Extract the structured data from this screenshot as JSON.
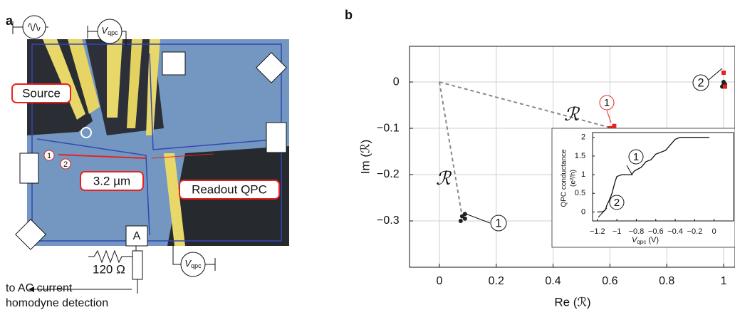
{
  "panel_a": {
    "label": "a",
    "source": "Source",
    "distance": "3.2 µm",
    "readout": "Readout QPC",
    "ammeter": "A",
    "resistor": "120 Ω",
    "detection": [
      "to AC current",
      "homodyne detection"
    ],
    "vqpc_symbol": "V",
    "vqpc_subscript": "qpc",
    "markers": [
      "1",
      "2"
    ]
  },
  "chart_data": [
    {
      "type": "scatter",
      "label": "b",
      "xlabel": "Re (ℛ)",
      "ylabel": "Im (ℛ)",
      "xlim": [
        -0.105,
        1.04
      ],
      "ylim": [
        -0.4,
        0.077
      ],
      "xticks": [
        0,
        0.2,
        0.4,
        0.6,
        0.8,
        1
      ],
      "yticks": [
        0,
        {
          "value": -0.1,
          "label": "−0.1"
        },
        {
          "value": -0.2,
          "label": "−0.2"
        },
        {
          "value": -0.3,
          "label": "−0.3"
        }
      ],
      "grid": true,
      "series": [
        {
          "color": "#222222",
          "x": [
            0.08,
            0.09,
            0.075,
            0.09,
            1.0,
            1.0,
            0.995,
            1.005
          ],
          "y": [
            -0.29,
            -0.285,
            -0.3,
            -0.295,
            -0.005,
            0.0,
            -0.01,
            -0.005
          ]
        },
        {
          "color": "#e8231f",
          "x": [
            0.61,
            0.6,
            0.605,
            0.615,
            1.0,
            1.005
          ],
          "y": [
            -0.1,
            -0.1,
            -0.11,
            -0.095,
            0.02,
            -0.01
          ]
        }
      ],
      "annotations": [
        "1",
        "2",
        "ℛ",
        "ℛ",
        "1"
      ]
    },
    {
      "type": "line",
      "ylabel": "QPC conductance",
      "yunit": "(e²/h)",
      "xlabel": {
        "symbol": "V",
        "subscript": "qpc",
        "unit": "(V)"
      },
      "xlim": [
        -1.25,
        0.2
      ],
      "ylim": [
        -0.24,
        2.13
      ],
      "xticks": [
        {
          "value": -1.2,
          "label": "−1.2"
        },
        {
          "value": -1,
          "label": "−1"
        },
        {
          "value": -0.8,
          "label": "−0.8"
        },
        {
          "value": -0.6,
          "label": "−0.6"
        },
        {
          "value": -0.4,
          "label": "−0.4"
        },
        {
          "value": -0.2,
          "label": "−0.2"
        },
        0
      ],
      "yticks": [
        0,
        0.5,
        1,
        1.5,
        2
      ],
      "color": "#111111",
      "x": [
        -1.2,
        -1.15,
        -1.12,
        -1.1,
        -1.08,
        -1.05,
        -1.02,
        -1.0,
        -0.95,
        -0.85,
        -0.82,
        -0.75,
        -0.7,
        -0.65,
        -0.6,
        -0.5,
        -0.45,
        -0.4,
        -0.35,
        -0.05
      ],
      "y": [
        0,
        0,
        0.05,
        0.2,
        0.3,
        0.5,
        0.8,
        0.95,
        1.0,
        1.0,
        1.1,
        1.2,
        1.35,
        1.4,
        1.55,
        1.65,
        1.8,
        1.95,
        2.0,
        2.0
      ],
      "annotations": [
        "1",
        "2"
      ]
    }
  ]
}
